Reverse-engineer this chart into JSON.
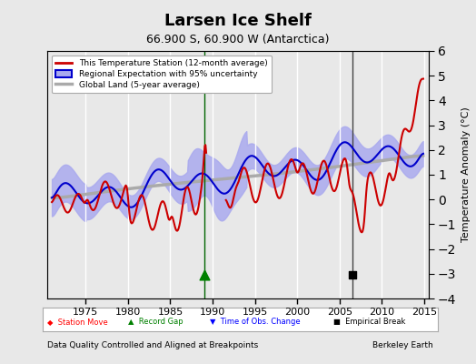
{
  "title": "Larsen Ice Shelf",
  "subtitle": "66.900 S, 60.900 W (Antarctica)",
  "ylabel": "Temperature Anomaly (°C)",
  "footer_left": "Data Quality Controlled and Aligned at Breakpoints",
  "footer_right": "Berkeley Earth",
  "xlim": [
    1970.5,
    2015.5
  ],
  "ylim": [
    -4,
    6
  ],
  "yticks": [
    -4,
    -3,
    -2,
    -1,
    0,
    1,
    2,
    3,
    4,
    5,
    6
  ],
  "xticks": [
    1975,
    1980,
    1985,
    1990,
    1995,
    2000,
    2005,
    2010,
    2015
  ],
  "bg_color": "#e8e8e8",
  "plot_bg_color": "#e8e8e8",
  "grid_color": "white",
  "red_color": "#cc0000",
  "blue_color": "#0000cc",
  "shade_color": "#aaaaee",
  "gray_color": "#aaaaaa",
  "record_gap_x": 1989.0,
  "record_gap_y": -3.05,
  "empirical_break_x": 2006.5,
  "empirical_break_y": -3.05,
  "vline1_x": 1989.0,
  "vline2_x": 2006.5
}
